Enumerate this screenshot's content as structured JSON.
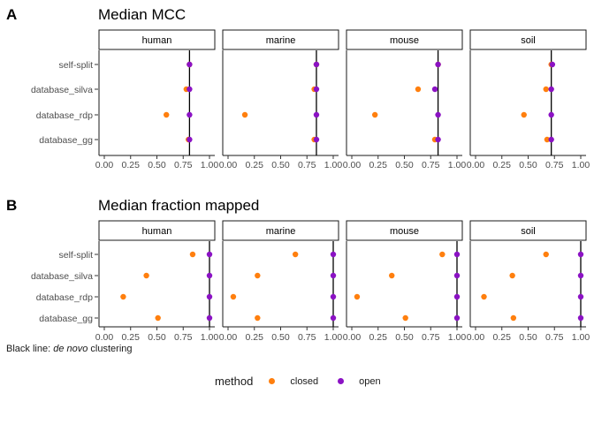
{
  "chart_data": [
    {
      "type": "scatter",
      "panel_label": "A",
      "title": "Median MCC",
      "facets": [
        "human",
        "marine",
        "mouse",
        "soil"
      ],
      "categories": [
        "self-split",
        "database_silva",
        "database_rdp",
        "database_gg"
      ],
      "xlim": [
        0,
        1
      ],
      "xticks": [
        "0.00",
        "0.25",
        "0.50",
        "0.75",
        "1.00"
      ],
      "reference_line": [
        0.81,
        0.84,
        0.82,
        0.72
      ],
      "series": [
        {
          "name": "closed",
          "color": "#FF7F0E",
          "values": [
            [
              0.81,
              0.78,
              0.59,
              0.8
            ],
            [
              0.84,
              0.82,
              0.16,
              0.82
            ],
            [
              0.82,
              0.63,
              0.22,
              0.79
            ],
            [
              0.72,
              0.67,
              0.46,
              0.68
            ]
          ]
        },
        {
          "name": "open",
          "color": "#8B12C4",
          "values": [
            [
              0.81,
              0.81,
              0.81,
              0.81
            ],
            [
              0.84,
              0.84,
              0.84,
              0.84
            ],
            [
              0.82,
              0.79,
              0.82,
              0.82
            ],
            [
              0.73,
              0.72,
              0.72,
              0.72
            ]
          ]
        }
      ]
    },
    {
      "type": "scatter",
      "panel_label": "B",
      "title": "Median fraction mapped",
      "facets": [
        "human",
        "marine",
        "mouse",
        "soil"
      ],
      "categories": [
        "self-split",
        "database_silva",
        "database_rdp",
        "database_gg"
      ],
      "xlim": [
        0,
        1
      ],
      "xticks": [
        "0.00",
        "0.25",
        "0.50",
        "0.75",
        "1.00"
      ],
      "reference_line": [
        1.0,
        1.0,
        1.0,
        1.0
      ],
      "series": [
        {
          "name": "closed",
          "color": "#FF7F0E",
          "values": [
            [
              0.84,
              0.4,
              0.18,
              0.51
            ],
            [
              0.64,
              0.28,
              0.05,
              0.28
            ],
            [
              0.86,
              0.38,
              0.05,
              0.51
            ],
            [
              0.67,
              0.35,
              0.08,
              0.36
            ]
          ]
        },
        {
          "name": "open",
          "color": "#8B12C4",
          "values": [
            [
              1.0,
              1.0,
              1.0,
              1.0
            ],
            [
              1.0,
              1.0,
              1.0,
              1.0
            ],
            [
              1.0,
              1.0,
              1.0,
              1.0
            ],
            [
              1.0,
              1.0,
              1.0,
              1.0
            ]
          ]
        }
      ]
    }
  ],
  "footnote": {
    "prefix": "Black line: ",
    "italic": "de novo",
    "suffix": " clustering"
  },
  "legend": {
    "title": "method",
    "items": [
      {
        "label": "closed",
        "color": "#FF7F0E"
      },
      {
        "label": "open",
        "color": "#8B12C4"
      }
    ]
  }
}
